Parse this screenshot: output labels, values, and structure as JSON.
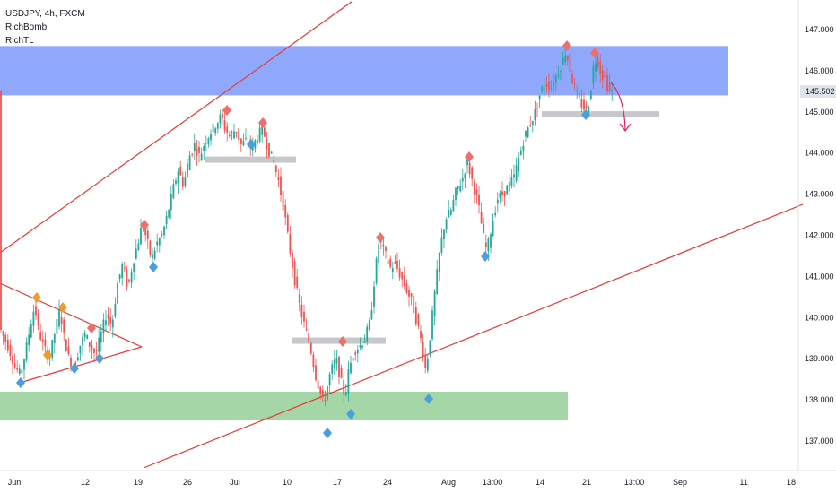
{
  "header": {
    "symbol": "USDJPY, 4h, FXCM",
    "indicators": [
      "RichBomb",
      "RichTL"
    ]
  },
  "colors": {
    "up": "#26a69a",
    "down": "#ef5350",
    "trendline": "#e53935",
    "supply_zone": "#8fa8fb",
    "demand_zone": "#a5d6a7",
    "level": "#c8c8cc",
    "marker_high": "#ef6f6f",
    "marker_low": "#4a9fdc",
    "marker_orange": "#f39a2e",
    "arrow": "#e91e63"
  },
  "chart_data": {
    "type": "candlestick",
    "y_range": [
      136.5,
      147.5
    ],
    "x_tick_labels": [
      "Jun",
      "12",
      "19",
      "26",
      "Jul",
      "10",
      "17",
      "24",
      "Aug",
      "13:00",
      "14",
      "21",
      "13:00",
      "Sep",
      "11",
      "18"
    ],
    "y_tick_labels": [
      "147.000",
      "146.000",
      "145.000",
      "144.000",
      "143.000",
      "142.000",
      "141.000",
      "140.000",
      "139.000",
      "138.000",
      "137.000"
    ],
    "last_price": "145.502",
    "zones": [
      {
        "name": "supply",
        "from": 145.4,
        "to": 146.6
      },
      {
        "name": "demand",
        "from": 137.5,
        "to": 138.2
      }
    ],
    "levels": [
      {
        "name": "level-jun-high",
        "price": 143.85
      },
      {
        "name": "level-jul-low",
        "price": 139.45
      },
      {
        "name": "level-aug-low",
        "price": 144.95
      }
    ],
    "path_points": [
      [
        0,
        139.8
      ],
      [
        6,
        139.5
      ],
      [
        12,
        139.2
      ],
      [
        18,
        138.8
      ],
      [
        24,
        138.6
      ],
      [
        30,
        139.2
      ],
      [
        36,
        139.9
      ],
      [
        40,
        140.3
      ],
      [
        44,
        139.7
      ],
      [
        50,
        139.3
      ],
      [
        56,
        139.0
      ],
      [
        62,
        139.6
      ],
      [
        68,
        140.2
      ],
      [
        72,
        139.6
      ],
      [
        78,
        139.0
      ],
      [
        84,
        138.8
      ],
      [
        90,
        139.3
      ],
      [
        96,
        139.6
      ],
      [
        102,
        139.3
      ],
      [
        108,
        139.1
      ],
      [
        114,
        139.6
      ],
      [
        120,
        140.1
      ],
      [
        126,
        139.8
      ],
      [
        132,
        140.8
      ],
      [
        138,
        141.3
      ],
      [
        144,
        140.7
      ],
      [
        150,
        141.4
      ],
      [
        156,
        141.9
      ],
      [
        160,
        142.3
      ],
      [
        166,
        141.8
      ],
      [
        170,
        141.4
      ],
      [
        176,
        141.8
      ],
      [
        182,
        142.0
      ],
      [
        188,
        142.5
      ],
      [
        194,
        143.1
      ],
      [
        200,
        143.6
      ],
      [
        206,
        143.2
      ],
      [
        212,
        143.9
      ],
      [
        218,
        144.2
      ],
      [
        224,
        143.9
      ],
      [
        230,
        144.3
      ],
      [
        236,
        144.5
      ],
      [
        242,
        144.7
      ],
      [
        248,
        144.9
      ],
      [
        252,
        144.6
      ],
      [
        258,
        144.4
      ],
      [
        264,
        144.6
      ],
      [
        270,
        144.2
      ],
      [
        276,
        144.3
      ],
      [
        282,
        144.1
      ],
      [
        288,
        144.4
      ],
      [
        294,
        144.6
      ],
      [
        300,
        144.1
      ],
      [
        306,
        143.8
      ],
      [
        312,
        143.3
      ],
      [
        318,
        142.6
      ],
      [
        324,
        141.7
      ],
      [
        330,
        140.9
      ],
      [
        336,
        140.2
      ],
      [
        342,
        139.7
      ],
      [
        348,
        139.2
      ],
      [
        354,
        138.5
      ],
      [
        358,
        138.2
      ],
      [
        362,
        137.9
      ],
      [
        366,
        138.3
      ],
      [
        370,
        138.7
      ],
      [
        376,
        139.0
      ],
      [
        382,
        138.4
      ],
      [
        386,
        138.1
      ],
      [
        390,
        138.7
      ],
      [
        396,
        139.2
      ],
      [
        402,
        139.3
      ],
      [
        408,
        139.5
      ],
      [
        414,
        139.9
      ],
      [
        418,
        140.8
      ],
      [
        424,
        141.9
      ],
      [
        430,
        141.6
      ],
      [
        436,
        141.2
      ],
      [
        442,
        141.3
      ],
      [
        448,
        141.0
      ],
      [
        454,
        140.7
      ],
      [
        460,
        140.4
      ],
      [
        466,
        139.9
      ],
      [
        472,
        139.3
      ],
      [
        476,
        138.7
      ],
      [
        480,
        139.4
      ],
      [
        486,
        140.6
      ],
      [
        492,
        141.7
      ],
      [
        498,
        142.4
      ],
      [
        504,
        142.6
      ],
      [
        510,
        143.1
      ],
      [
        516,
        143.3
      ],
      [
        522,
        143.8
      ],
      [
        528,
        143.3
      ],
      [
        534,
        142.8
      ],
      [
        540,
        142.0
      ],
      [
        544,
        141.6
      ],
      [
        550,
        142.3
      ],
      [
        556,
        142.9
      ],
      [
        562,
        143.0
      ],
      [
        568,
        143.2
      ],
      [
        574,
        143.4
      ],
      [
        580,
        143.9
      ],
      [
        586,
        144.4
      ],
      [
        592,
        144.7
      ],
      [
        598,
        145.0
      ],
      [
        604,
        145.5
      ],
      [
        610,
        145.7
      ],
      [
        616,
        145.6
      ],
      [
        622,
        145.9
      ],
      [
        628,
        146.2
      ],
      [
        632,
        146.5
      ],
      [
        636,
        146.1
      ],
      [
        640,
        145.7
      ],
      [
        646,
        145.3
      ],
      [
        652,
        145.1
      ],
      [
        656,
        145.0
      ],
      [
        660,
        145.6
      ],
      [
        664,
        146.3
      ],
      [
        668,
        146.2
      ],
      [
        672,
        145.9
      ],
      [
        676,
        145.8
      ],
      [
        680,
        145.5
      ]
    ]
  }
}
